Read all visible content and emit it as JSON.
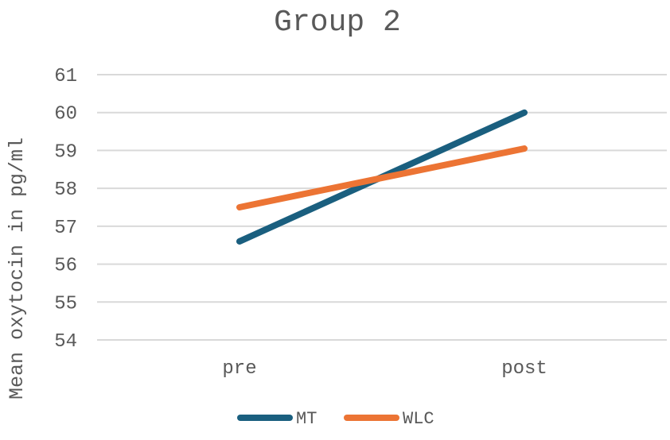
{
  "chart_data": {
    "type": "line",
    "title": "Group 2",
    "xlabel": "",
    "ylabel": "Mean oxytocin in pg/ml",
    "categories": [
      "pre",
      "post"
    ],
    "ylim": [
      54,
      61
    ],
    "yticks": [
      54,
      55,
      56,
      57,
      58,
      59,
      60,
      61
    ],
    "grid": true,
    "legend_position": "bottom",
    "series": [
      {
        "name": "MT",
        "values": [
          56.6,
          60.0
        ],
        "color": "#1a5f7f"
      },
      {
        "name": "WLC",
        "values": [
          57.5,
          59.05
        ],
        "color": "#ec7434"
      }
    ]
  }
}
